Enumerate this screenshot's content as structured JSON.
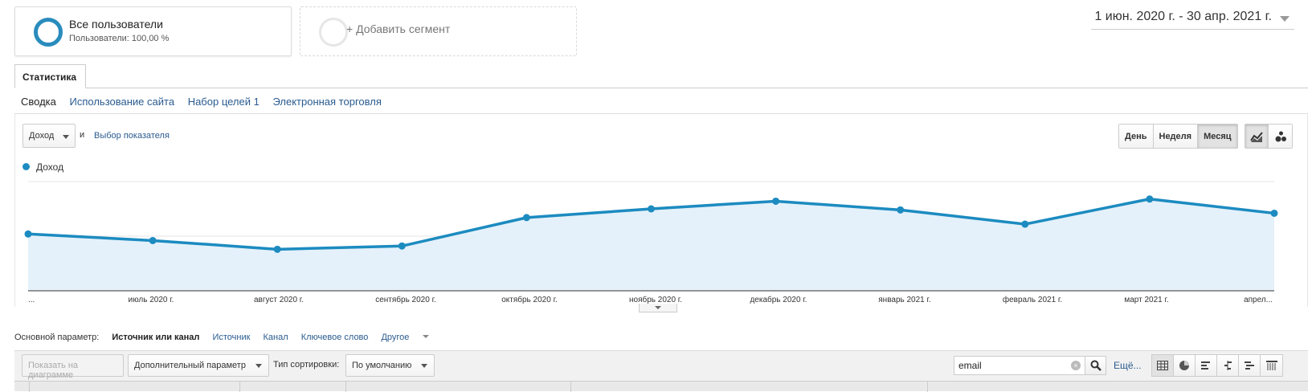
{
  "segments": [
    {
      "title": "Все пользователи",
      "subtitle": "Пользователи: 100,00 %"
    },
    {
      "title": "+ Добавить сегмент"
    }
  ],
  "date_range": "1 июн. 2020 г. - 30 апр. 2021 г.",
  "tabs": [
    {
      "label": "Статистика"
    }
  ],
  "subnav": [
    "Сводка",
    "Использование сайта",
    "Набор целей 1",
    "Электронная торговля"
  ],
  "chart_controls": {
    "metric": "Доход",
    "and": "и",
    "pick_metric": "Выбор показателя",
    "periods": [
      "День",
      "Неделя",
      "Месяц"
    ],
    "active_period": "Месяц",
    "chart_types": [
      "line-chart-icon",
      "motion-chart-icon"
    ]
  },
  "chart_data": {
    "type": "area",
    "series": [
      {
        "name": "Доход",
        "values": [
          0.52,
          0.46,
          0.38,
          0.41,
          0.67,
          0.75,
          0.82,
          0.74,
          0.61,
          0.84,
          0.71
        ]
      }
    ],
    "categories": [
      "...",
      "июль 2020 г.",
      "август 2020 г.",
      "сентябрь 2020 г.",
      "октябрь 2020 г.",
      "ноябрь 2020 г.",
      "декабрь 2020 г.",
      "январь 2021 г.",
      "февраль 2021 г.",
      "март 2021 г.",
      "апрел..."
    ],
    "ylim": [
      0,
      1
    ],
    "color": "#1c8bc0",
    "fill": "#e4f1fa",
    "grid": true
  },
  "primary_dimension": {
    "label": "Основной параметр:",
    "current": "Источник или канал",
    "options": [
      "Источник",
      "Канал",
      "Ключевое слово"
    ],
    "other": "Другое"
  },
  "toolbar": {
    "show_chart": "Показать на диаграмме",
    "secondary": "Дополнительный параметр",
    "sort_label": "Тип сортировки:",
    "sort_value": "По умолчанию",
    "search_value": "email",
    "more": "Ещё..."
  },
  "view_icons": [
    "data-table-icon",
    "pie-chart-icon",
    "performance-icon",
    "comparison-icon",
    "term-cloud-icon",
    "pivot-icon"
  ]
}
